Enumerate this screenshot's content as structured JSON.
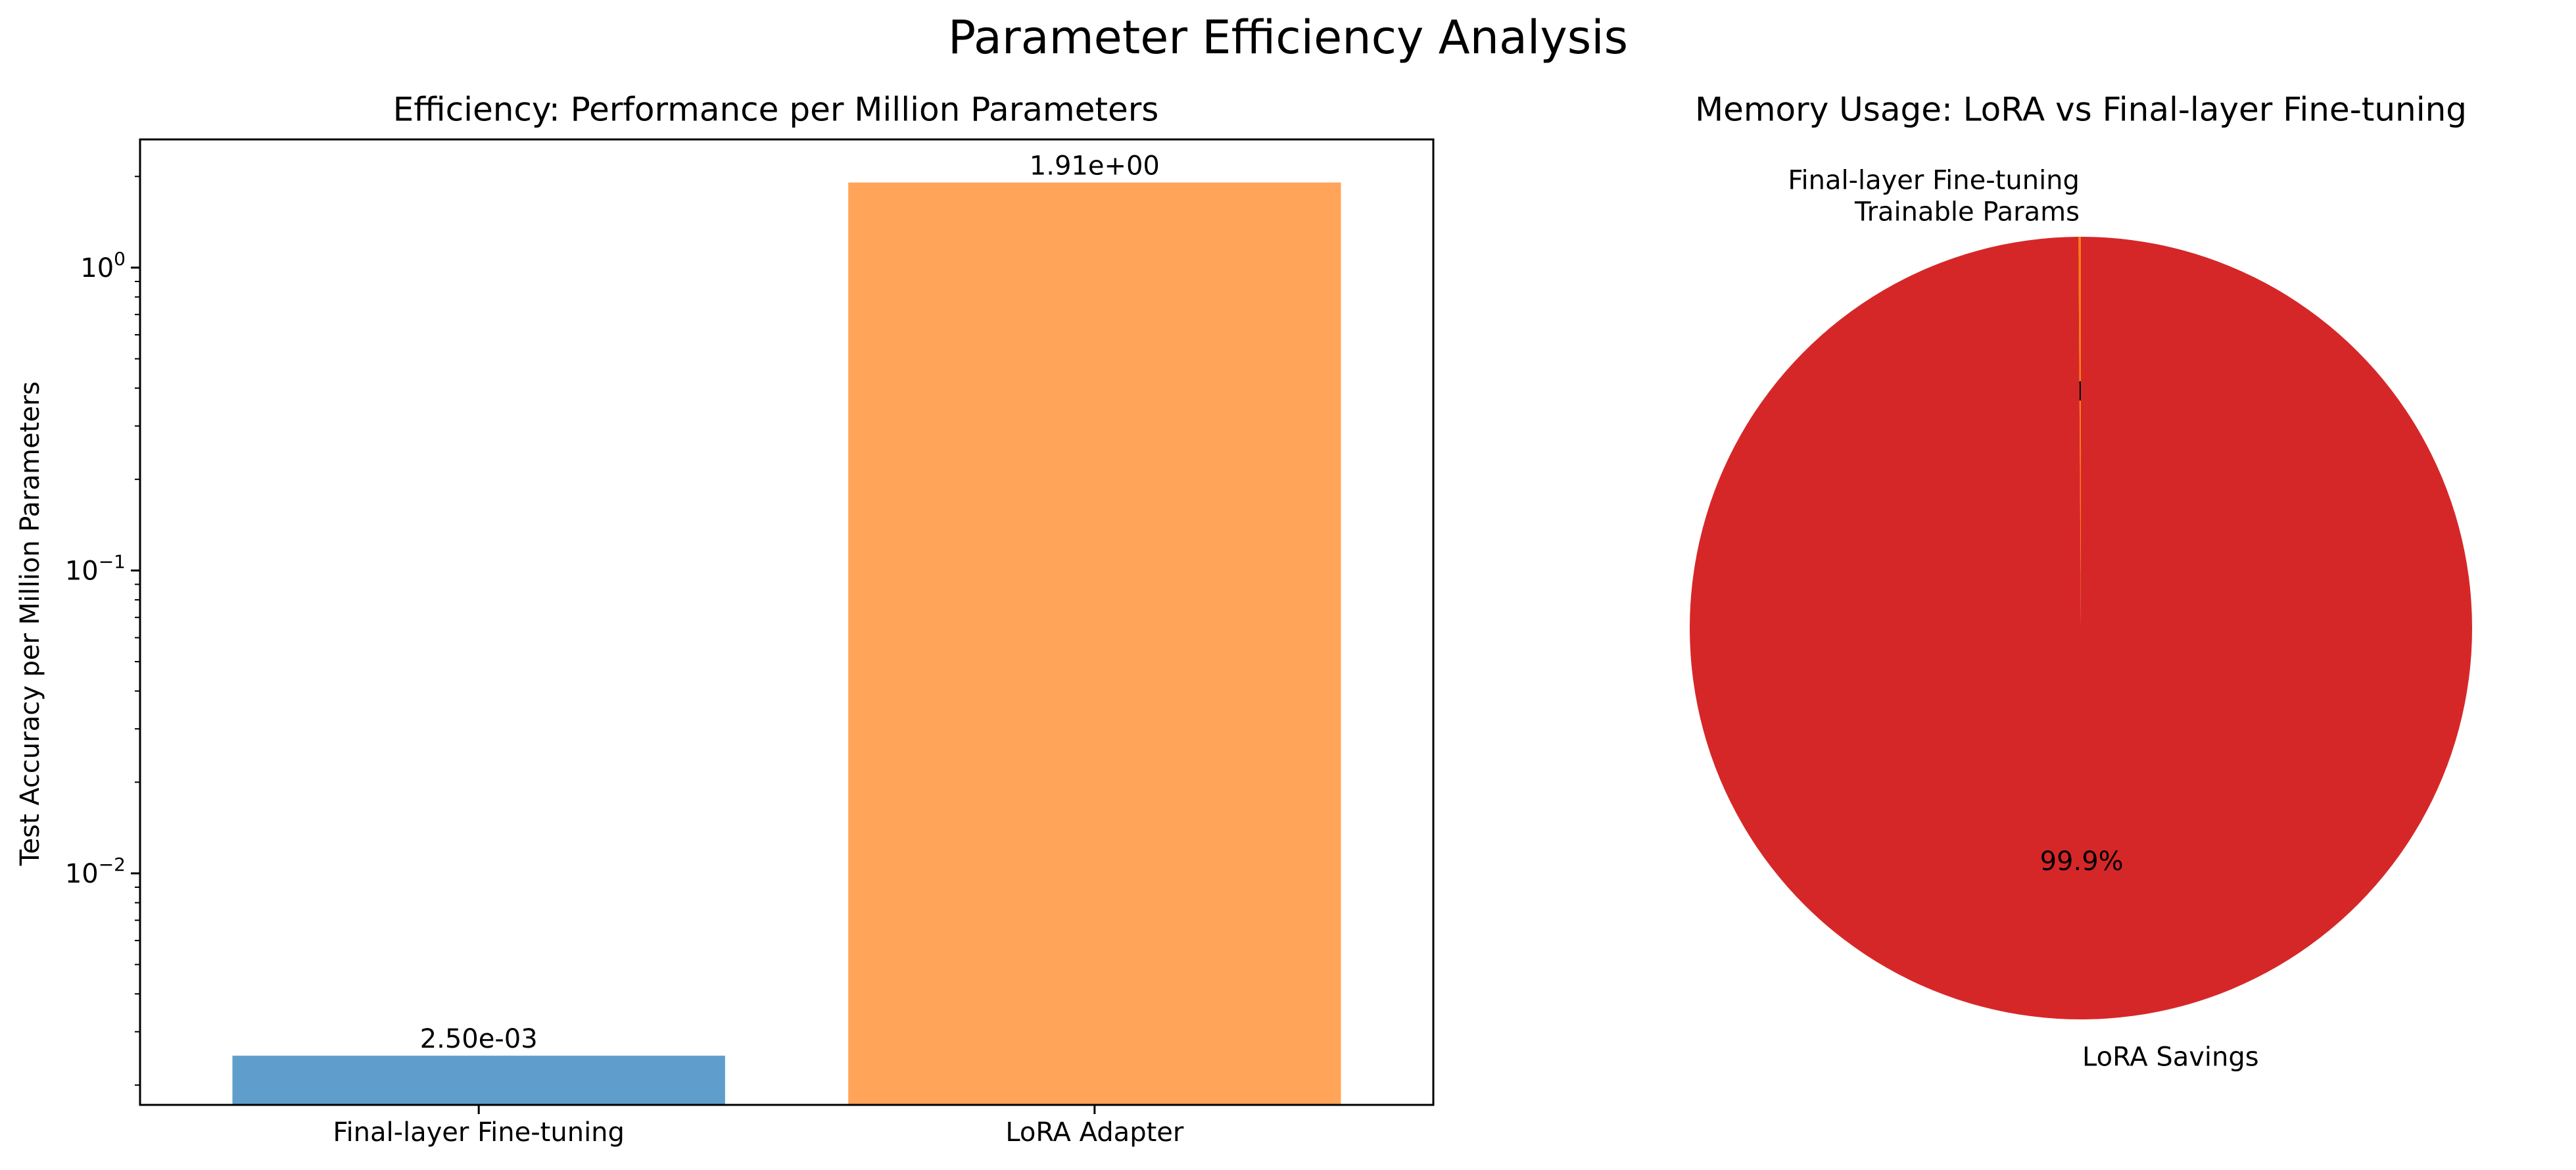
{
  "figure": {
    "suptitle": "Parameter Efficiency Analysis"
  },
  "chart_data": [
    {
      "type": "bar",
      "title": "Efficiency: Performance per Million Parameters",
      "xlabel": "",
      "ylabel": "Test Accuracy per Million Parameters",
      "yscale": "log",
      "ylim": [
        0.00172,
        2.65
      ],
      "yticks": [
        {
          "value": 1,
          "base": "10",
          "exp": "0"
        },
        {
          "value": 0.1,
          "base": "10",
          "exp": "−1"
        },
        {
          "value": 0.01,
          "base": "10",
          "exp": "−2"
        }
      ],
      "categories": [
        "Final-layer Fine-tuning",
        "LoRA Adapter"
      ],
      "values": [
        0.0025,
        1.91
      ],
      "value_labels": [
        "2.50e-03",
        "1.91e+00"
      ],
      "colors": [
        "#5f9dcd",
        "#ffa458"
      ],
      "grid": false,
      "legend": "none"
    },
    {
      "type": "pie",
      "title": "Memory Usage: LoRA vs Final-layer Fine-tuning",
      "start_angle_deg": 90,
      "counterclockwise": true,
      "slices": [
        {
          "label_lines": [
            "Final-layer Fine-tuning",
            "Trainable Params"
          ],
          "value": 0.1,
          "pct_label": "0.1%",
          "color": "#ff7f0e"
        },
        {
          "label_lines": [
            "LoRA Savings"
          ],
          "value": 99.9,
          "pct_label": "99.9%",
          "color": "#d62728"
        }
      ],
      "legend": "none"
    }
  ]
}
